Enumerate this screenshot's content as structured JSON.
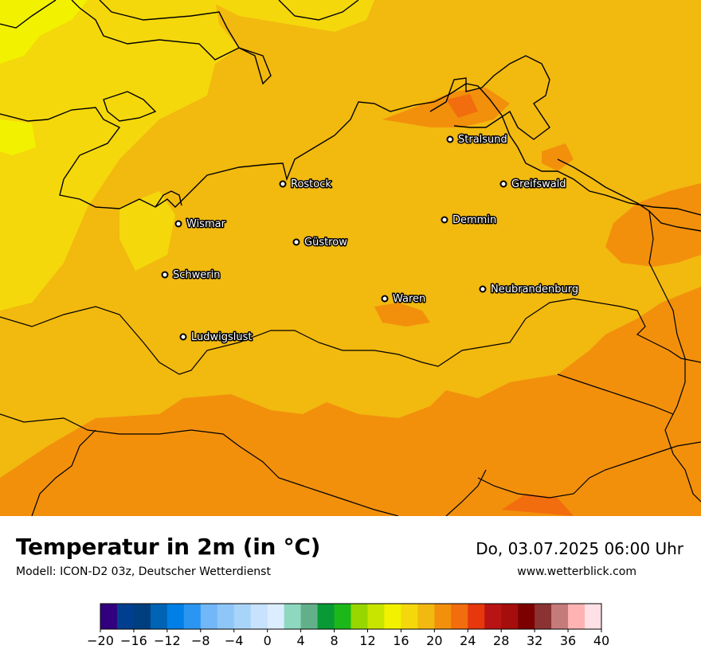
{
  "map": {
    "cities": [
      {
        "name": "Stralsund"
      },
      {
        "name": "Rostock"
      },
      {
        "name": "Greifswald"
      },
      {
        "name": "Wismar"
      },
      {
        "name": "Demmin"
      },
      {
        "name": "Güstrow"
      },
      {
        "name": "Schwerin"
      },
      {
        "name": "Neubrandenburg"
      },
      {
        "name": "Waren"
      },
      {
        "name": "Ludwigslust"
      }
    ]
  },
  "title": "Temperatur in 2m (in °C)",
  "subtitle": "Modell: ICON-D2 03z, Deutscher Wetterdienst",
  "datetime": "Do, 03.07.2025 06:00 Uhr",
  "website": "www.wetterblick.com",
  "colorbar": {
    "min": -20,
    "max": 40,
    "colors": [
      "#32007f",
      "#003f8f",
      "#003f7f",
      "#0063b4",
      "#0080e6",
      "#2b96f2",
      "#72b7f7",
      "#8ec6f8",
      "#a9d4fa",
      "#c6e2fc",
      "#dcedff",
      "#8ed8c0",
      "#62b08a",
      "#0a9a35",
      "#1cb81a",
      "#98d600",
      "#c8e500",
      "#f2f200",
      "#f4d80b",
      "#f2b90f",
      "#f2900c",
      "#f26d0d",
      "#e6370d",
      "#b81414",
      "#a60d0d",
      "#7d0000",
      "#8b3333",
      "#c67b7b",
      "#ffb3b3",
      "#ffe0e6"
    ],
    "tick_labels": [
      "−20",
      "−16",
      "−12",
      "−8",
      "−4",
      "0",
      "4",
      "8",
      "12",
      "16",
      "20",
      "24",
      "28",
      "32",
      "36",
      "40"
    ]
  }
}
